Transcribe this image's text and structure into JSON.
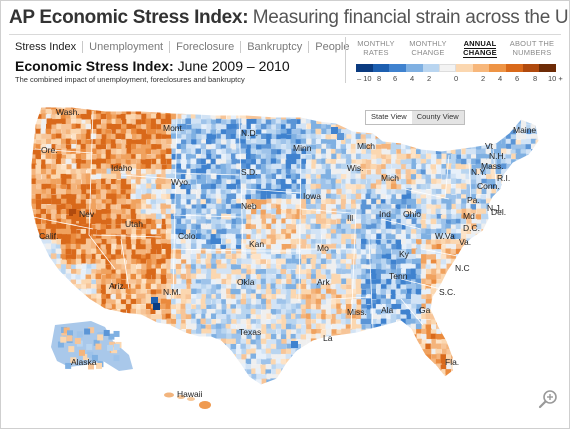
{
  "header": {
    "title_bold": "AP Economic Stress Index:",
    "title_rest": "Measuring financial strain across the U.S."
  },
  "nav": {
    "tabs": [
      "Stress Index",
      "Unemployment",
      "Foreclosure",
      "Bankruptcy",
      "People"
    ],
    "active": "Stress Index"
  },
  "subtitle": {
    "bold": "Economic Stress Index:",
    "rest": "June 2009 – 2010"
  },
  "description": "The combined impact of unemployment, foreclosures and bankruptcy",
  "legend_tabs": [
    {
      "line1": "MONTHLY",
      "line2": "RATES"
    },
    {
      "line1": "MONTHLY",
      "line2": "CHANGE"
    },
    {
      "line1": "ANNUAL",
      "line2": "CHANGE"
    },
    {
      "line1": "ABOUT THE",
      "line2": "NUMBERS"
    }
  ],
  "legend_active": "ANNUAL",
  "legend": {
    "labels": [
      "– 10",
      "8",
      "6",
      "4",
      "2",
      "0",
      "2",
      "4",
      "6",
      "8",
      "10 +"
    ],
    "colors": [
      "#0b3b80",
      "#1d5fb0",
      "#3f82cf",
      "#7fb0e2",
      "#b9d5f0",
      "#f3f3f3",
      "#fbd7b0",
      "#f7b77b",
      "#ee9445",
      "#d9691a",
      "#b04a0e",
      "#6d2b06"
    ]
  },
  "view_toggle": {
    "state": "State View",
    "county": "County View",
    "active": "County View"
  },
  "map": {
    "state_labels": [
      "Wash.",
      "Ore.",
      "Calif.",
      "Nev",
      "Idaho",
      "Mont.",
      "Wyo.",
      "Utah",
      "Ariz.",
      "Colo.",
      "N.M.",
      "N.D.",
      "S.D.",
      "Neb",
      "Kan",
      "Okla",
      "Texas",
      "Minn",
      "Iowa",
      "Mo",
      "Ark",
      "La",
      "Wis.",
      "Ill",
      "Mich",
      "Mich",
      "Ind",
      "Ohio",
      "Ky",
      "Tenn",
      "Miss.",
      "Ala",
      "Ga",
      "Fla.",
      "S.C.",
      "N.C",
      "Va.",
      "W.Va",
      "Pa.",
      "N.Y.",
      "Md",
      "D.C.",
      "Del.",
      "N.J.",
      "Conn.",
      "R.I.",
      "Mass.",
      "N.H.",
      "Vt",
      "Maine",
      "Alaska",
      "Hawaii"
    ]
  },
  "icons": {
    "zoom": "zoom-in-icon"
  }
}
